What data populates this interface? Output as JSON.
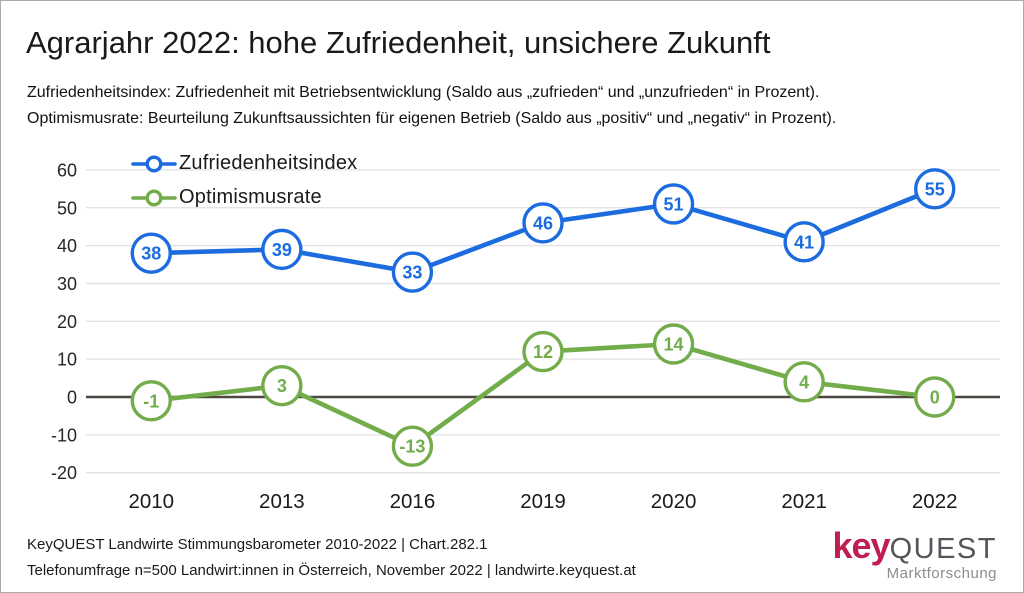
{
  "title": "Agrarjahr 2022: hohe Zufriedenheit, unsichere Zukunft",
  "subtitle_line1": "Zufriedenheitsindex: Zufriedenheit mit Betriebsentwicklung (Saldo aus „zufrieden“ und „unzufrieden“ in Prozent).",
  "subtitle_line2": "Optimismusrate: Beurteilung Zukunftsaussichten für eigenen Betrieb (Saldo aus „positiv“ und „negativ“ in Prozent).",
  "footer": {
    "line1": "KeyQUEST Landwirte Stimmungsbarometer 2010-2022  | Chart.282.1",
    "line2": "Telefonumfrage n=500 Landwirt:innen in Österreich, November 2022 | landwirte.keyquest.at"
  },
  "logo": {
    "part1": "key",
    "part2": "QUEST",
    "subtitle": "Marktforschung",
    "color_key": "#c01d50",
    "color_quest": "#54565b",
    "color_subtitle": "#8b8d90"
  },
  "chart_data": {
    "type": "line",
    "categories": [
      "2010",
      "2013",
      "2016",
      "2019",
      "2020",
      "2021",
      "2022"
    ],
    "series": [
      {
        "name": "Zufriedenheitsindex",
        "color": "#1c6ce0",
        "values": [
          38,
          39,
          33,
          46,
          51,
          41,
          55
        ]
      },
      {
        "name": "Optimismusrate",
        "color": "#72ac4b",
        "values": [
          -1,
          3,
          -13,
          12,
          14,
          4,
          0
        ]
      }
    ],
    "ylim": [
      -20,
      60
    ],
    "ytick_step": 10,
    "yticks": [
      -20,
      -10,
      0,
      10,
      20,
      30,
      40,
      50,
      60
    ],
    "grid": true,
    "gridline_color": "#e0e0e0",
    "zeroline_color": "#4c4840",
    "axis_label_color": "#262626",
    "marker_fill": "#ffffff",
    "legend_position": "top-left"
  }
}
